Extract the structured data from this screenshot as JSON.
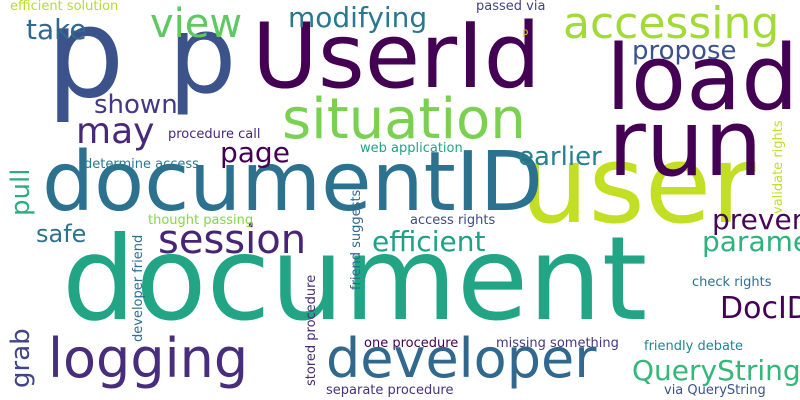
{
  "words": [
    {
      "id": "document",
      "text": "document",
      "color": "#21a585"
    },
    {
      "id": "user",
      "text": "user",
      "color": "#c2df23"
    },
    {
      "id": "documentID",
      "text": "documentID",
      "color": "#2c728e"
    },
    {
      "id": "UserId",
      "text": "UserId",
      "color": "#440154"
    },
    {
      "id": "p1",
      "text": "p",
      "color": "#3b528b"
    },
    {
      "id": "p2",
      "text": "p",
      "color": "#3b528b"
    },
    {
      "id": "load",
      "text": "load",
      "color": "#440154"
    },
    {
      "id": "run",
      "text": "run",
      "color": "#440154"
    },
    {
      "id": "situation",
      "text": "situation",
      "color": "#7ad151"
    },
    {
      "id": "developer",
      "text": "developer",
      "color": "#31688e"
    },
    {
      "id": "logging",
      "text": "logging",
      "color": "#472d7b"
    },
    {
      "id": "accessing",
      "text": "accessing",
      "color": "#a2da37"
    },
    {
      "id": "session",
      "text": "session",
      "color": "#482475"
    },
    {
      "id": "view",
      "text": "view",
      "color": "#5ec962"
    },
    {
      "id": "may",
      "text": "may",
      "color": "#482878"
    },
    {
      "id": "modifying",
      "text": "modifying",
      "color": "#2a788e"
    },
    {
      "id": "efficient",
      "text": "efficient",
      "color": "#29af7f"
    },
    {
      "id": "parameter",
      "text": "parameter",
      "color": "#414487"
    },
    {
      "id": "QueryString",
      "text": "QueryString",
      "color": "#1fa187"
    },
    {
      "id": "DocID",
      "text": "DocID",
      "color": "#2db27d"
    },
    {
      "id": "prevent",
      "text": "prevent",
      "color": "#35b779"
    },
    {
      "id": "page",
      "text": "page",
      "color": "#440154"
    },
    {
      "id": "take",
      "text": "take",
      "color": "#46075a"
    },
    {
      "id": "propose",
      "text": "propose",
      "color": "#440154"
    },
    {
      "id": "shown",
      "text": "shown",
      "color": "#31688e"
    },
    {
      "id": "earlier",
      "text": "earlier",
      "color": "#3b528b"
    },
    {
      "id": "safe",
      "text": "safe",
      "color": "#443983"
    },
    {
      "id": "pull",
      "text": "pull",
      "color": "#27808e"
    },
    {
      "id": "grab",
      "text": "grab",
      "color": "#2c728e"
    },
    {
      "id": "efficient_solution",
      "text": "efficient solution",
      "color": "#b5de2b"
    },
    {
      "id": "passed_via",
      "text": "passed via",
      "color": "#414487"
    },
    {
      "id": "p_small",
      "text": "p",
      "color": "#dde318"
    },
    {
      "id": "procedure_call",
      "text": "procedure call",
      "color": "#482878"
    },
    {
      "id": "web_application",
      "text": "web application",
      "color": "#20a386"
    },
    {
      "id": "determine_access",
      "text": "determine access",
      "color": "#2a788e"
    },
    {
      "id": "thought_passing",
      "text": "thought passing",
      "color": "#86d549"
    },
    {
      "id": "access_rights",
      "text": "access rights",
      "color": "#3e4989"
    },
    {
      "id": "friend_suggests",
      "text": "friend suggests",
      "color": "#31688e"
    },
    {
      "id": "developer_friend",
      "text": "developer friend",
      "color": "#2e6e8e"
    },
    {
      "id": "stored_procedure",
      "text": "stored procedure",
      "color": "#472c7a"
    },
    {
      "id": "validate_rights",
      "text": "validate rights",
      "color": "#c0df25"
    },
    {
      "id": "check_rights",
      "text": "check rights",
      "color": "#2c728e"
    },
    {
      "id": "friendly_debate",
      "text": "friendly debate",
      "color": "#25848e"
    },
    {
      "id": "one_procedure",
      "text": "one procedure",
      "color": "#440154"
    },
    {
      "id": "missing_something",
      "text": "missing something",
      "color": "#453781"
    },
    {
      "id": "separate_procedure",
      "text": "separate procedure",
      "color": "#46327e"
    },
    {
      "id": "via_QueryString",
      "text": "via QueryString",
      "color": "#3b528b"
    }
  ]
}
